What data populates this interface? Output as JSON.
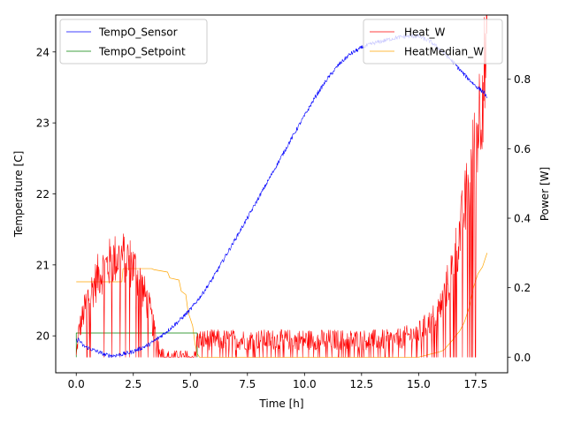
{
  "chart_data": {
    "type": "line",
    "title": "",
    "xlabel": "Time [h]",
    "ylabel_left": "Temperature [C]",
    "ylabel_right": "Power [W]",
    "xlim": [
      -0.9,
      18.9
    ],
    "ylim_left": [
      19.48,
      24.52
    ],
    "ylim_right": [
      -0.045,
      0.985
    ],
    "x_ticks": [
      0.0,
      2.5,
      5.0,
      7.5,
      10.0,
      12.5,
      15.0,
      17.5
    ],
    "x_tick_labels": [
      "0.0",
      "2.5",
      "5.0",
      "7.5",
      "10.0",
      "12.5",
      "15.0",
      "17.5"
    ],
    "y_left_ticks": [
      20,
      21,
      22,
      23,
      24
    ],
    "y_left_tick_labels": [
      "20",
      "21",
      "22",
      "23",
      "24"
    ],
    "y_right_ticks": [
      0.0,
      0.2,
      0.4,
      0.6,
      0.8
    ],
    "y_right_tick_labels": [
      "0.0",
      "0.2",
      "0.4",
      "0.6",
      "0.8"
    ],
    "grid": false,
    "legend_left": {
      "placement": "top-left",
      "entries": [
        {
          "name": "TempO_Sensor",
          "color": "#0000ff"
        },
        {
          "name": "TempO_Setpoint",
          "color": "#008000"
        }
      ]
    },
    "legend_right": {
      "placement": "top-right",
      "entries": [
        {
          "name": "Heat_W",
          "color": "#ff0000"
        },
        {
          "name": "HeatMedian_W",
          "color": "#ffa500"
        }
      ]
    },
    "series": [
      {
        "name": "TempO_Sensor",
        "axis": "left",
        "color": "#0000ff",
        "noise": 0.03,
        "x": [
          0.0,
          0.1,
          0.3,
          0.6,
          1.0,
          1.3,
          1.6,
          2.0,
          2.4,
          2.8,
          3.2,
          3.6,
          4.0,
          4.5,
          5.0,
          5.5,
          6.0,
          6.5,
          7.0,
          7.5,
          8.0,
          8.5,
          9.0,
          9.5,
          10.0,
          10.5,
          11.0,
          11.5,
          12.0,
          12.5,
          13.0,
          13.5,
          14.0,
          14.5,
          15.0,
          15.5,
          16.0,
          16.5,
          17.0,
          17.5,
          17.9,
          18.0
        ],
        "y": [
          19.93,
          19.95,
          19.86,
          19.82,
          19.77,
          19.73,
          19.72,
          19.74,
          19.77,
          19.82,
          19.88,
          19.97,
          20.07,
          20.21,
          20.37,
          20.58,
          20.82,
          21.1,
          21.38,
          21.66,
          21.95,
          22.24,
          22.53,
          22.82,
          23.1,
          23.38,
          23.62,
          23.82,
          23.97,
          24.06,
          24.12,
          24.16,
          24.2,
          24.22,
          24.22,
          24.15,
          24.02,
          23.86,
          23.68,
          23.52,
          23.42,
          23.32
        ]
      },
      {
        "name": "TempO_Setpoint",
        "axis": "left",
        "color": "#008000",
        "noise": 0,
        "x": [
          0.0,
          0.0,
          5.3,
          5.3
        ],
        "y": [
          19.7,
          20.04,
          20.04,
          19.7
        ]
      },
      {
        "name": "Heat_W",
        "axis": "right",
        "color": "#ff0000",
        "noise": 0.05,
        "x": [
          0.0,
          0.1,
          0.3,
          0.5,
          0.8,
          1.0,
          1.3,
          1.6,
          2.0,
          2.3,
          2.6,
          2.9,
          3.2,
          3.4,
          3.6,
          3.8,
          4.0,
          4.5,
          5.0,
          5.2,
          5.3,
          5.5,
          6.0,
          7.0,
          8.0,
          9.0,
          10.0,
          11.0,
          12.0,
          13.0,
          14.0,
          15.0,
          15.5,
          16.0,
          16.5,
          17.0,
          17.5,
          17.8,
          18.0
        ],
        "y": [
          0.0,
          0.07,
          0.12,
          0.17,
          0.21,
          0.24,
          0.26,
          0.28,
          0.29,
          0.28,
          0.25,
          0.2,
          0.14,
          0.08,
          0.04,
          0.01,
          0.0,
          0.0,
          0.0,
          0.0,
          0.05,
          0.05,
          0.05,
          0.05,
          0.05,
          0.05,
          0.05,
          0.05,
          0.05,
          0.05,
          0.05,
          0.07,
          0.1,
          0.15,
          0.26,
          0.42,
          0.62,
          0.78,
          0.88
        ]
      },
      {
        "name": "HeatMedian_W",
        "axis": "right",
        "color": "#ffa500",
        "noise": 0,
        "x": [
          0.0,
          2.0,
          2.05,
          3.3,
          3.4,
          4.0,
          4.1,
          4.5,
          4.6,
          4.8,
          4.9,
          5.1,
          5.2,
          5.3,
          5.4,
          6.0,
          7.0,
          10.0,
          13.0,
          15.0,
          15.3,
          15.6,
          15.9,
          16.1,
          16.3,
          16.5,
          16.6,
          16.8,
          17.0,
          17.2,
          17.4,
          17.6,
          17.8,
          18.0
        ],
        "y": [
          0.217,
          0.217,
          0.255,
          0.255,
          0.252,
          0.245,
          0.228,
          0.222,
          0.19,
          0.18,
          0.13,
          0.09,
          0.04,
          0.01,
          0.0,
          0.0,
          0.0,
          0.0,
          0.0,
          0.0,
          0.005,
          0.01,
          0.015,
          0.02,
          0.035,
          0.05,
          0.06,
          0.075,
          0.1,
          0.14,
          0.2,
          0.24,
          0.26,
          0.3
        ]
      }
    ]
  }
}
